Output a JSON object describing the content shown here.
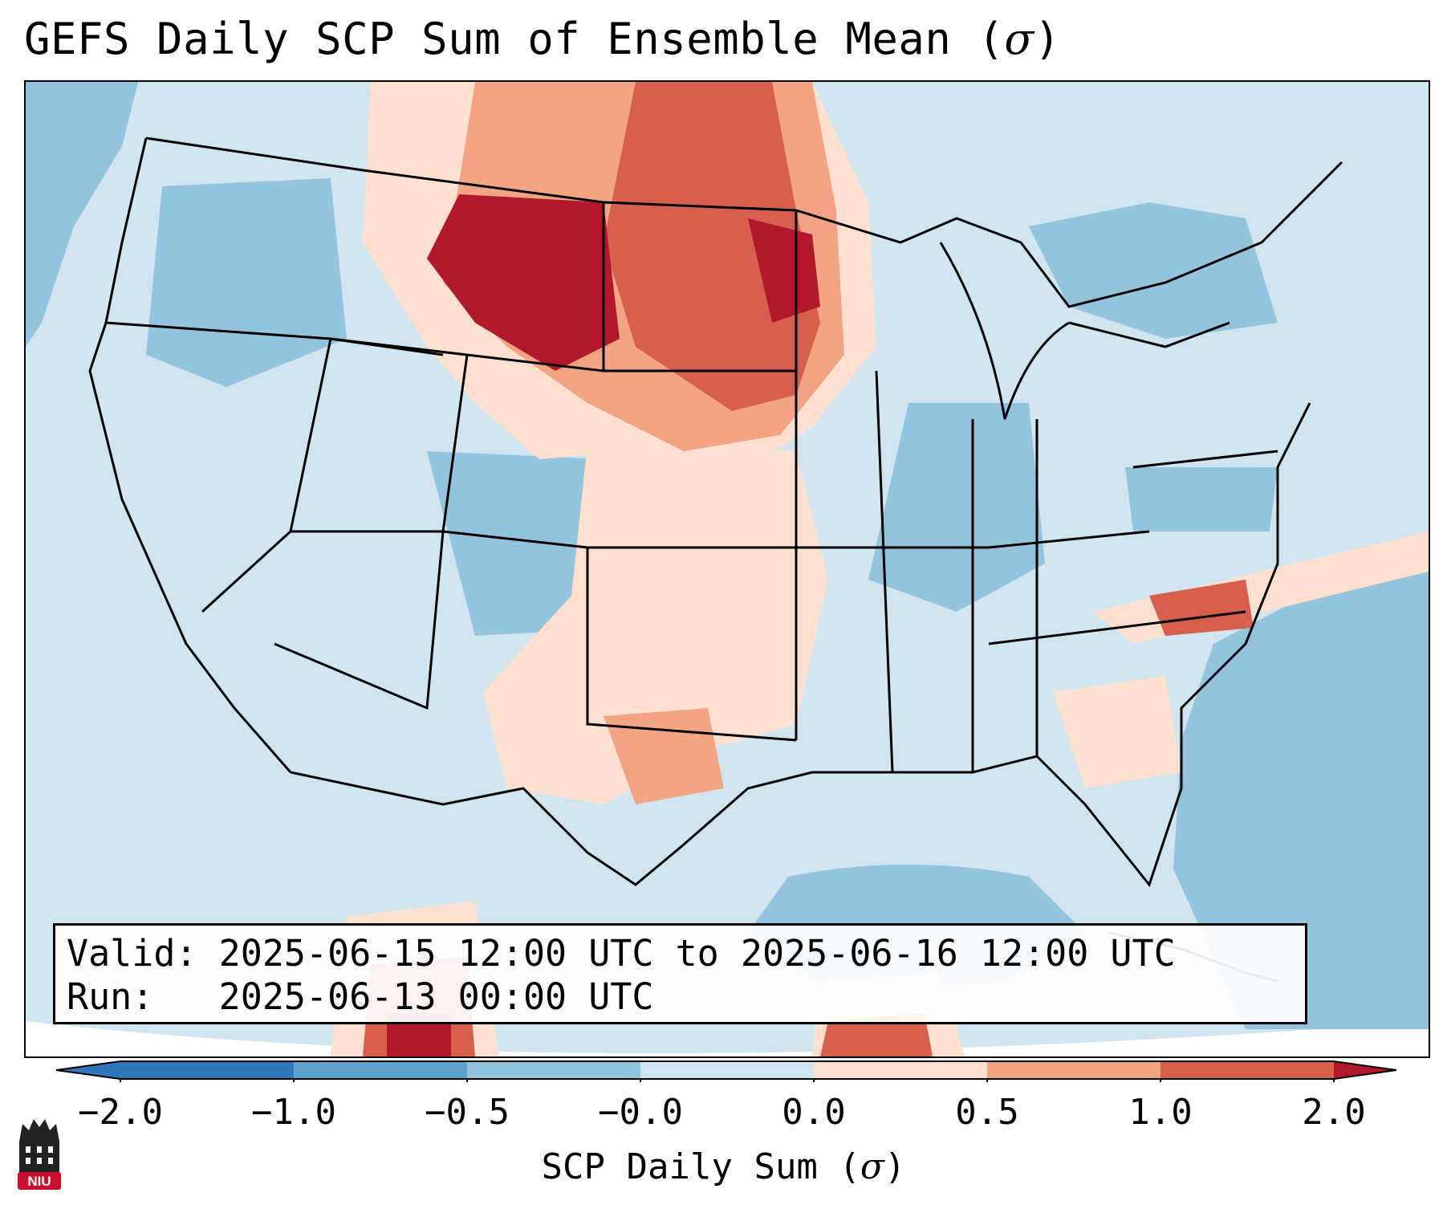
{
  "title": {
    "text": "GEFS Daily SCP Sum of Ensemble Mean (",
    "symbol": "σ",
    "close": ")"
  },
  "info": {
    "valid_line": "Valid: 2025-06-15 12:00 UTC to 2025-06-16 12:00 UTC",
    "run_line": "Run:   2025-06-13 00:00 UTC"
  },
  "colorbar": {
    "tick_labels": [
      "−2.0",
      "−1.0",
      "−0.5",
      "−0.0",
      "0.0",
      "0.5",
      "1.0",
      "2.0"
    ],
    "label_text": "SCP Daily Sum (",
    "label_symbol": "σ",
    "label_close": ")",
    "colors": [
      "#2f77bb",
      "#5ca3d1",
      "#93c4df",
      "#d1e5f0",
      "#fde0d0",
      "#f3a583",
      "#d6604d",
      "#b2182b"
    ]
  },
  "logo": {
    "text": "NIU",
    "color": "#c8102e"
  },
  "map": {
    "background_color": "#d1e5f0",
    "ocean_color": "#93c4df"
  }
}
